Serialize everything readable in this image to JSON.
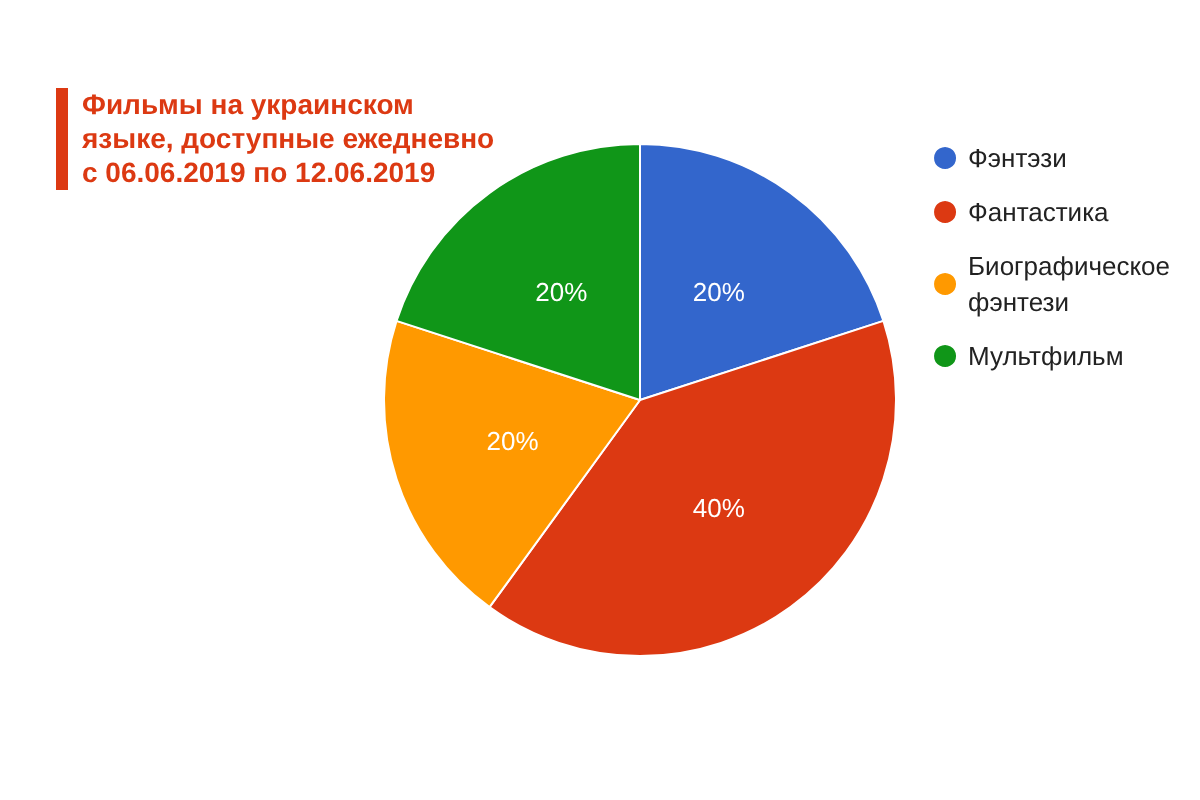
{
  "chart_data": {
    "type": "pie",
    "title": "Фильмы на украинском языке, доступные ежедневно с 06.06.2019 по 12.06.2019",
    "categories": [
      "Фэнтэзи",
      "Фантастика",
      "Биографическое фэнтези",
      "Мультфильм"
    ],
    "values": [
      20,
      40,
      20,
      20
    ],
    "colors": [
      "#3366cc",
      "#dc3912",
      "#ff9900",
      "#109618"
    ],
    "value_labels": [
      "20%",
      "40%",
      "20%",
      "20%"
    ],
    "legend": "right"
  }
}
